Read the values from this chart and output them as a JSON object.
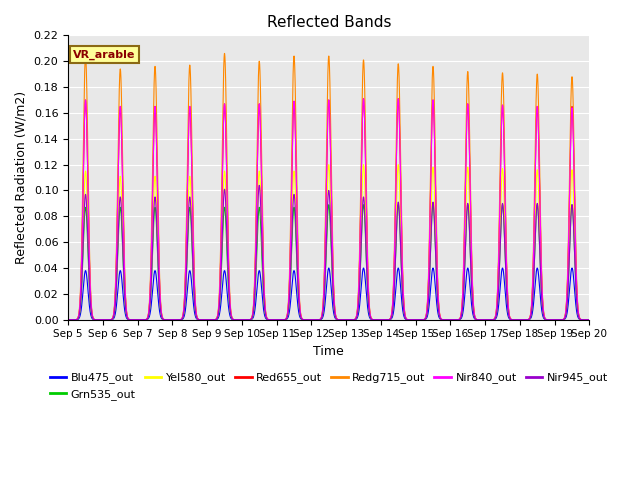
{
  "title": "Reflected Bands",
  "ylabel": "Reflected Radiation (W/m2)",
  "xlabel": "Time",
  "annotation": "VR_arable",
  "ylim": [
    0,
    0.22
  ],
  "bg_color": "#e8e8e8",
  "series": [
    {
      "label": "Blu475_out",
      "color": "#0000ff",
      "peak": 0.038
    },
    {
      "label": "Grn535_out",
      "color": "#00cc00",
      "peak": 0.087
    },
    {
      "label": "Yel580_out",
      "color": "#ffff00",
      "peak": 0.115
    },
    {
      "label": "Red655_out",
      "color": "#ff0000",
      "peak": 0.167
    },
    {
      "label": "Redg715_out",
      "color": "#ff8800",
      "peak": 0.204
    },
    {
      "label": "Nir840_out",
      "color": "#ff00ff",
      "peak": 0.17
    },
    {
      "label": "Nir945_out",
      "color": "#9900cc",
      "peak": 0.097
    }
  ],
  "start_day": 5,
  "end_day": 20,
  "points_per_day": 480,
  "day_peaks": [
    [
      0.038,
      0.038,
      0.038,
      0.038,
      0.038,
      0.038,
      0.038,
      0.04,
      0.04,
      0.04,
      0.04,
      0.04,
      0.04,
      0.04,
      0.04
    ],
    [
      0.087,
      0.087,
      0.087,
      0.087,
      0.087,
      0.087,
      0.087,
      0.089,
      0.089,
      0.089,
      0.089,
      0.089,
      0.089,
      0.089,
      0.089
    ],
    [
      0.115,
      0.111,
      0.111,
      0.111,
      0.115,
      0.115,
      0.115,
      0.12,
      0.12,
      0.12,
      0.118,
      0.118,
      0.117,
      0.116,
      0.116
    ],
    [
      0.17,
      0.165,
      0.165,
      0.165,
      0.167,
      0.167,
      0.169,
      0.17,
      0.171,
      0.171,
      0.17,
      0.167,
      0.166,
      0.165,
      0.165
    ],
    [
      0.204,
      0.194,
      0.196,
      0.197,
      0.206,
      0.2,
      0.204,
      0.204,
      0.201,
      0.198,
      0.196,
      0.192,
      0.191,
      0.19,
      0.188
    ],
    [
      0.17,
      0.165,
      0.165,
      0.165,
      0.167,
      0.167,
      0.169,
      0.17,
      0.171,
      0.171,
      0.17,
      0.167,
      0.166,
      0.165,
      0.164
    ],
    [
      0.097,
      0.095,
      0.095,
      0.095,
      0.101,
      0.104,
      0.097,
      0.1,
      0.095,
      0.091,
      0.091,
      0.09,
      0.09,
      0.09,
      0.089
    ]
  ]
}
